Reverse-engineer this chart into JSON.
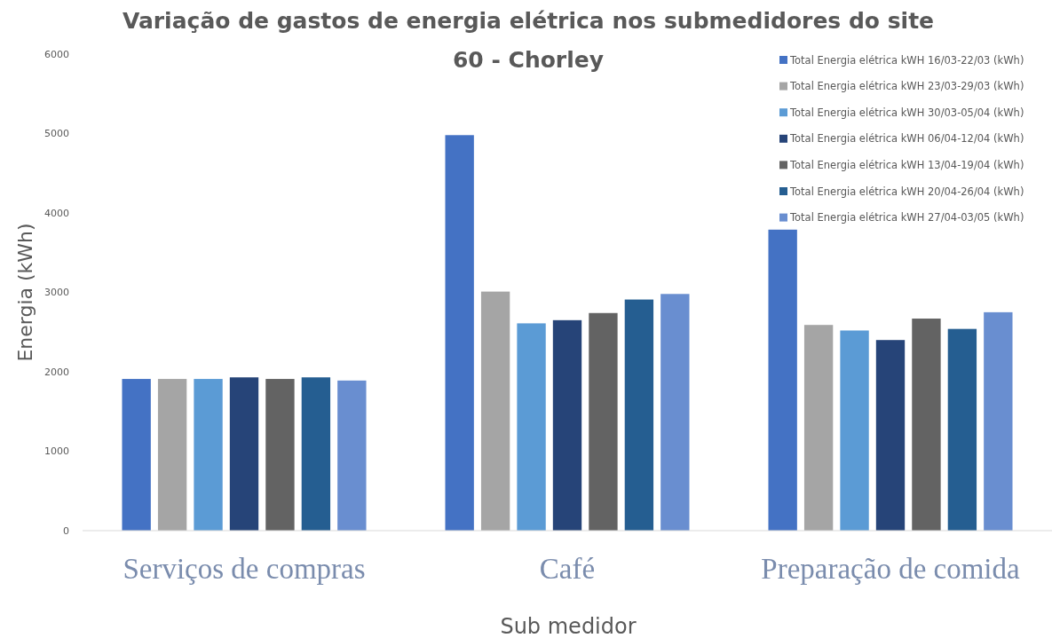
{
  "chart_data": {
    "type": "bar",
    "title": "Variação de gastos de energia elétrica nos submedidores do site 60 - Chorley",
    "xlabel": "Sub medidor",
    "ylabel": "Energia (kWh)",
    "categories": [
      "Serviços de compras",
      "Café",
      "Preparação de comida"
    ],
    "series": [
      {
        "name": "Total Energia elétrica kWH 16/03-22/03 (kWh)",
        "color": "#4472c4",
        "values": [
          1910,
          4980,
          3790
        ]
      },
      {
        "name": "Total Energia elétrica kWH 23/03-29/03 (kWh)",
        "color": "#a5a5a5",
        "values": [
          1910,
          3010,
          2590
        ]
      },
      {
        "name": "Total Energia elétrica kWH 30/03-05/04 (kWh)",
        "color": "#5b9bd5",
        "values": [
          1910,
          2610,
          2520
        ]
      },
      {
        "name": "Total Energia elétrica kWH 06/04-12/04 (kWh)",
        "color": "#264478",
        "values": [
          1930,
          2650,
          2400
        ]
      },
      {
        "name": "Total Energia elétrica kWH 13/04-19/04 (kWh)",
        "color": "#636363",
        "values": [
          1910,
          2740,
          2670
        ]
      },
      {
        "name": "Total Energia elétrica kWH 20/04-26/04 (kWh)",
        "color": "#255e91",
        "values": [
          1930,
          2910,
          2540
        ]
      },
      {
        "name": "Total Energia elétrica kWH 27/04-03/05 (kWh)",
        "color": "#698ed0",
        "values": [
          1890,
          2980,
          2750
        ]
      }
    ],
    "ylim": [
      0,
      6000
    ],
    "yticks": [
      0,
      1000,
      2000,
      3000,
      4000,
      5000,
      6000
    ],
    "grid": false,
    "legend": "top right"
  }
}
